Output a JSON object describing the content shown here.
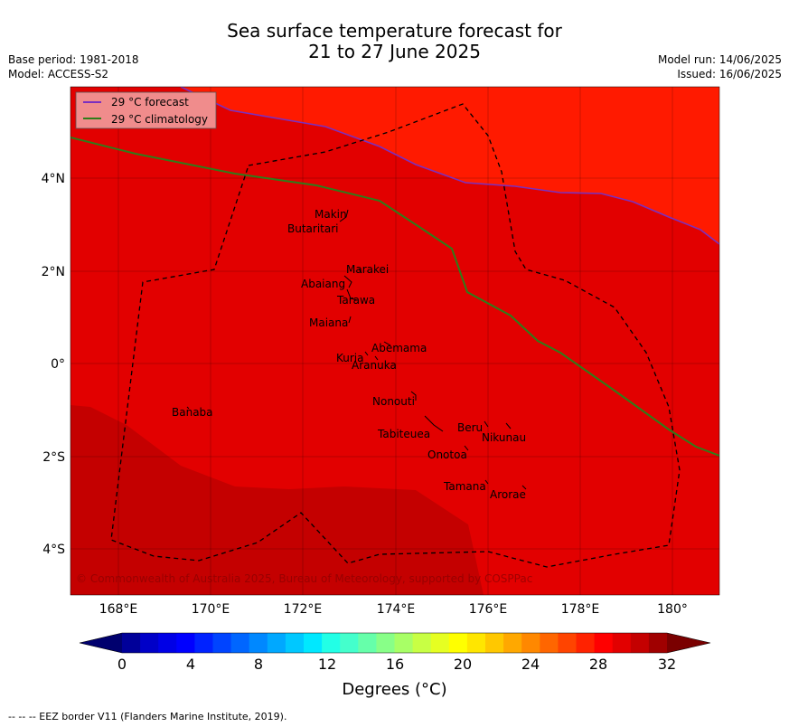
{
  "title": {
    "line1": "Sea surface temperature forecast for",
    "line2": "21 to 27 June 2025"
  },
  "meta": {
    "base_period": "Base period: 1981-2018",
    "model": "Model: ACCESS-S2",
    "model_run": "Model run: 14/06/2025",
    "issued": "Issued: 16/06/2025"
  },
  "legend": {
    "forecast": "29 °C  forecast",
    "climatology": "29 °C  climatology"
  },
  "credit": "© Commonwealth of Australia 2025, Bureau of Meteorology, supported by COSPPac",
  "footer": "--  --  -- EEZ border V11 (Flanders Marine Institute, 2019).",
  "colorbar": {
    "title": "Degrees ($^\\circ$C)",
    "title_display": "Degrees (°C)",
    "ticks": [
      "0",
      "4",
      "8",
      "12",
      "16",
      "20",
      "24",
      "28",
      "32"
    ]
  },
  "axes": {
    "x_ticks": [
      "168°E",
      "170°E",
      "172°E",
      "174°E",
      "176°E",
      "178°E",
      "180°"
    ],
    "y_ticks": [
      "4°N",
      "2°N",
      "0°",
      "2°S",
      "4°S"
    ]
  },
  "islands": [
    {
      "name": "Makin"
    },
    {
      "name": "Butaritari"
    },
    {
      "name": "Marakei"
    },
    {
      "name": "Abaiang"
    },
    {
      "name": "Tarawa"
    },
    {
      "name": "Maiana"
    },
    {
      "name": "Abemama"
    },
    {
      "name": "Kuria"
    },
    {
      "name": "Aranuka"
    },
    {
      "name": "Nonouti"
    },
    {
      "name": "Banaba"
    },
    {
      "name": "Beru"
    },
    {
      "name": "Tabiteuea"
    },
    {
      "name": "Nikunau"
    },
    {
      "name": "Onotoa"
    },
    {
      "name": "Tamana"
    },
    {
      "name": "Arorae"
    }
  ],
  "colors": {
    "sst_29_30": "#e20000",
    "sst_28_29": "#ff1a00",
    "sst_30_31": "#c40000",
    "forecast_line": "#7b2fbf",
    "climatology_line": "#2e7d1a",
    "legend_bg": "#f08c8c"
  }
}
